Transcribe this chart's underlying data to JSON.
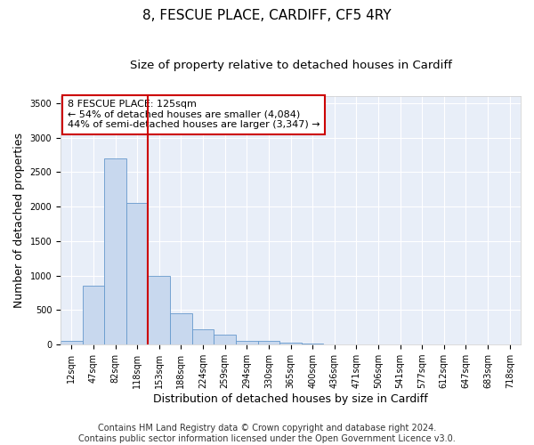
{
  "title": "8, FESCUE PLACE, CARDIFF, CF5 4RY",
  "subtitle": "Size of property relative to detached houses in Cardiff",
  "xlabel": "Distribution of detached houses by size in Cardiff",
  "ylabel": "Number of detached properties",
  "footer_line1": "Contains HM Land Registry data © Crown copyright and database right 2024.",
  "footer_line2": "Contains public sector information licensed under the Open Government Licence v3.0.",
  "annotation_line1": "8 FESCUE PLACE: 125sqm",
  "annotation_line2": "← 54% of detached houses are smaller (4,084)",
  "annotation_line3": "44% of semi-detached houses are larger (3,347) →",
  "bar_categories": [
    "12sqm",
    "47sqm",
    "82sqm",
    "118sqm",
    "153sqm",
    "188sqm",
    "224sqm",
    "259sqm",
    "294sqm",
    "330sqm",
    "365sqm",
    "400sqm",
    "436sqm",
    "471sqm",
    "506sqm",
    "541sqm",
    "577sqm",
    "612sqm",
    "647sqm",
    "683sqm",
    "718sqm"
  ],
  "bar_values": [
    60,
    850,
    2700,
    2050,
    1000,
    450,
    220,
    150,
    60,
    50,
    30,
    20,
    5,
    0,
    0,
    0,
    0,
    0,
    0,
    0,
    0
  ],
  "bar_color": "#c8d8ee",
  "bar_edge_color": "#6699cc",
  "vline_color": "#cc0000",
  "vline_bin_index": 3,
  "ylim": [
    0,
    3600
  ],
  "yticks": [
    0,
    500,
    1000,
    1500,
    2000,
    2500,
    3000,
    3500
  ],
  "fig_bg_color": "#ffffff",
  "plot_bg_color": "#e8eef8",
  "grid_color": "#ffffff",
  "annotation_box_edgecolor": "#cc0000",
  "title_fontsize": 11,
  "subtitle_fontsize": 9.5,
  "axis_label_fontsize": 9,
  "tick_fontsize": 7,
  "annotation_fontsize": 8,
  "footer_fontsize": 7
}
